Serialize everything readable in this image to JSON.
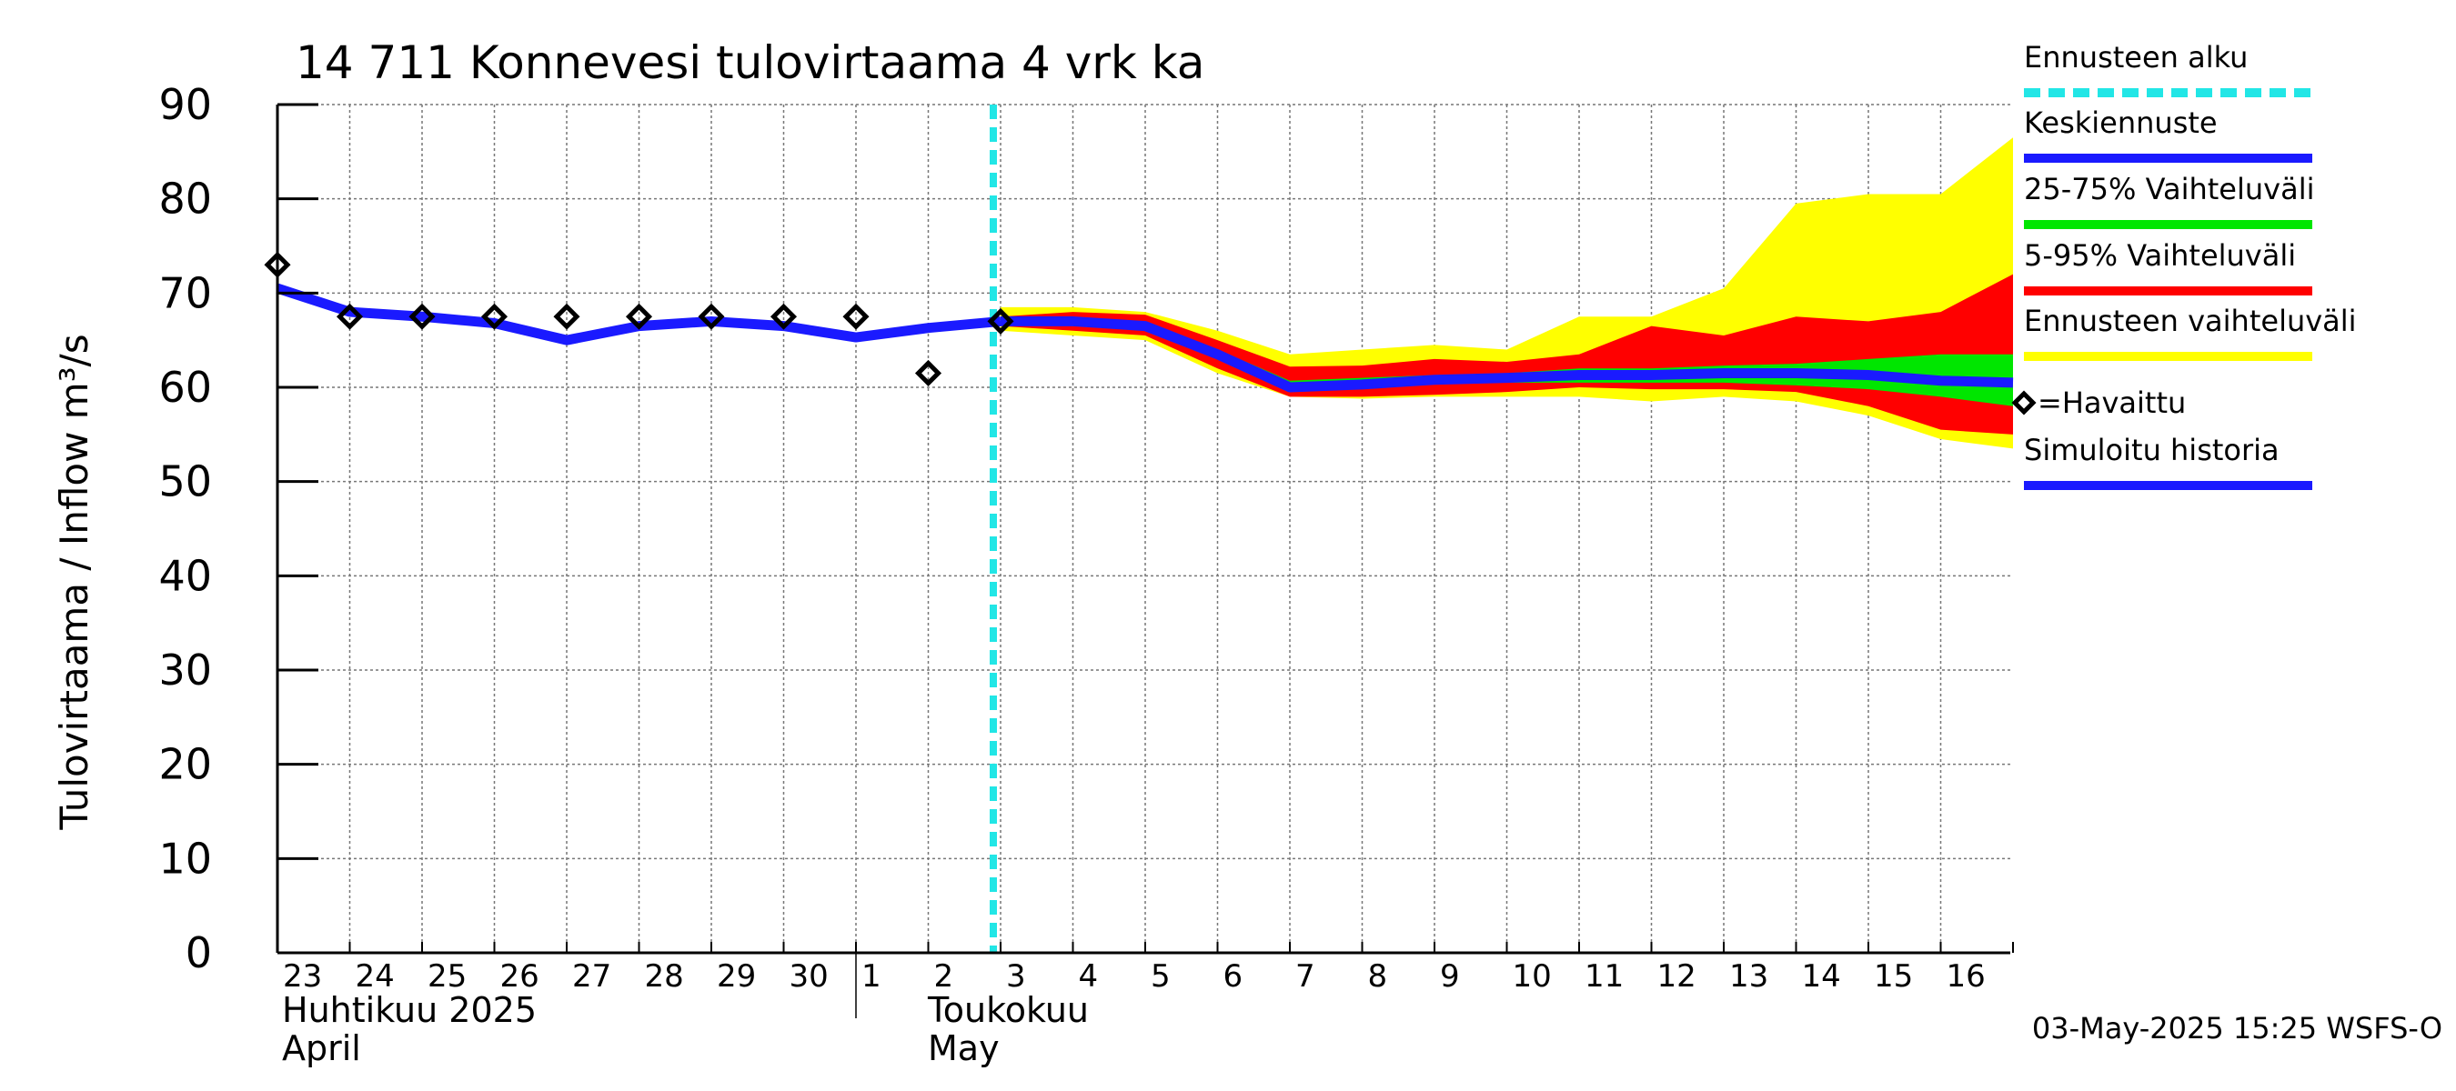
{
  "chart_data": {
    "type": "area",
    "title": "14 711 Konnevesi tulovirtaama 4 vrk ka",
    "ylabel": "Tulovirtaama / Inflow    m³/s",
    "ylim": [
      0,
      90
    ],
    "y_ticks": [
      "0",
      "10",
      "20",
      "30",
      "40",
      "50",
      "60",
      "70",
      "80",
      "90"
    ],
    "x_day_labels": [
      "23",
      "24",
      "25",
      "26",
      "27",
      "28",
      "29",
      "30",
      "1",
      "2",
      "3",
      "4",
      "5",
      "6",
      "7",
      "8",
      "9",
      "10",
      "11",
      "12",
      "13",
      "14",
      "15",
      "16"
    ],
    "month_labels": [
      {
        "line1": "Huhtikuu  2025",
        "line2": "April"
      },
      {
        "line1": "Toukokuu",
        "line2": "May"
      }
    ],
    "forecast_start_day_index": 10,
    "series": [
      {
        "name": "Simuloitu historia",
        "x": [
          0,
          1,
          2,
          3,
          4,
          5,
          6,
          7,
          8,
          9,
          10
        ],
        "values": [
          70.5,
          68.0,
          67.5,
          66.8,
          65.0,
          66.5,
          67.0,
          66.5,
          65.3,
          66.3,
          67.0
        ]
      },
      {
        "name": "Keskiennuste",
        "x": [
          10,
          11,
          12,
          13,
          14,
          15,
          16,
          17,
          18,
          19,
          20,
          21,
          22,
          23,
          24
        ],
        "values": [
          67.0,
          67.0,
          66.5,
          63.5,
          60.0,
          60.3,
          60.8,
          61.0,
          61.3,
          61.3,
          61.5,
          61.5,
          61.3,
          60.7,
          60.5
        ]
      },
      {
        "name": "=Havaittu",
        "x": [
          0,
          1,
          2,
          3,
          4,
          5,
          6,
          7,
          8,
          9,
          10
        ],
        "values": [
          73.0,
          67.5,
          67.5,
          67.5,
          67.5,
          67.5,
          67.5,
          67.5,
          67.5,
          61.5,
          67.0
        ]
      }
    ],
    "bands": [
      {
        "name": "Ennusteen vaihteluväli",
        "x": [
          10,
          11,
          12,
          13,
          14,
          15,
          16,
          17,
          18,
          19,
          20,
          21,
          22,
          23,
          24
        ],
        "low": [
          66.0,
          65.5,
          65.0,
          61.5,
          59.0,
          58.8,
          59.0,
          59.0,
          59.0,
          58.5,
          59.0,
          58.5,
          57.0,
          54.5,
          53.5
        ],
        "high": [
          68.5,
          68.5,
          68.0,
          66.0,
          63.5,
          64.0,
          64.5,
          64.0,
          67.5,
          67.5,
          70.5,
          79.5,
          80.5,
          80.5,
          86.5
        ]
      },
      {
        "name": "5-95% Vaihteluväli",
        "x": [
          10,
          11,
          12,
          13,
          14,
          15,
          16,
          17,
          18,
          19,
          20,
          21,
          22,
          23,
          24
        ],
        "low": [
          66.5,
          66.0,
          65.5,
          62.0,
          59.0,
          59.0,
          59.2,
          59.5,
          60.0,
          59.8,
          59.8,
          59.5,
          58.0,
          55.5,
          55.0
        ],
        "high": [
          67.5,
          68.0,
          67.7,
          65.0,
          62.2,
          62.3,
          63.0,
          62.7,
          63.5,
          66.5,
          65.5,
          67.5,
          67.0,
          68.0,
          72.0
        ]
      },
      {
        "name": "25-75% Vaihteluväli",
        "x": [
          10,
          11,
          12,
          13,
          14,
          15,
          16,
          17,
          18,
          19,
          20,
          21,
          22,
          23,
          24
        ],
        "low": [
          66.8,
          66.5,
          66.0,
          63.0,
          59.8,
          60.0,
          60.3,
          60.5,
          60.5,
          60.5,
          60.5,
          60.2,
          59.8,
          59.0,
          58.0
        ],
        "high": [
          67.2,
          67.3,
          67.0,
          64.0,
          60.7,
          61.0,
          61.3,
          61.5,
          62.0,
          62.0,
          62.3,
          62.5,
          63.0,
          63.5,
          63.5
        ]
      }
    ],
    "legend": [
      {
        "label": "Ennusteen alku",
        "color": "#22e6e6",
        "style": "dashed"
      },
      {
        "label": "Keskiennuste",
        "color": "#1a1aff",
        "style": "line"
      },
      {
        "label": "25-75% Vaihteluväli",
        "color": "#00e600",
        "style": "line"
      },
      {
        "label": "5-95% Vaihteluväli",
        "color": "#ff0000",
        "style": "line"
      },
      {
        "label": "Ennusteen vaihteluväli",
        "color": "#ffff00",
        "style": "line"
      },
      {
        "label": "=Havaittu",
        "color": "#000000",
        "style": "diamond"
      },
      {
        "label": "Simuloitu historia",
        "color": "#1a1aff",
        "style": "line"
      }
    ],
    "timestamp": "03-May-2025 15:25 WSFS-O"
  }
}
